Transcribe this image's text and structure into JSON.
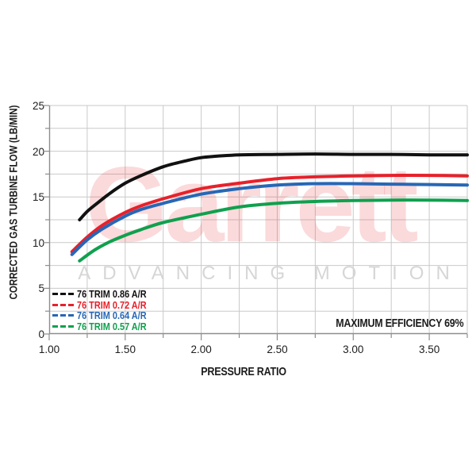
{
  "watermark": {
    "brand": "Garrett",
    "tagline": "ADVANCING MOTION",
    "brand_color": "#e7212b",
    "tagline_color": "#d6d6d6"
  },
  "colors": {
    "gridline": "#c9c9c9",
    "axis": "#8e8e8e",
    "tick_text": "#1c1c1c",
    "background": "#ffffff"
  },
  "chart_data": {
    "type": "line",
    "title": "",
    "xlabel": "PRESSURE RATIO",
    "ylabel": "CORRECTED GAS TURBINE FLOW (LB/MIN)",
    "xlim": [
      1.0,
      3.75
    ],
    "ylim": [
      0,
      25
    ],
    "x_major_ticks": [
      1.0,
      1.5,
      2.0,
      2.5,
      3.0,
      3.5
    ],
    "x_tick_labels": [
      "1.00",
      "1.50",
      "2.00",
      "2.50",
      "3.00",
      "3.50"
    ],
    "x_minor_step": 0.25,
    "y_major_ticks": [
      0,
      5,
      10,
      15,
      20,
      25
    ],
    "y_tick_labels": [
      "0",
      "5",
      "10",
      "15",
      "20",
      "25"
    ],
    "y_minor_step": 2.5,
    "grid": true,
    "legend_position": "bottom-left",
    "annotation": "MAXIMUM EFFICIENCY 69%",
    "series": [
      {
        "name": "76 TRIM 0.86 A/R",
        "color": "#111111",
        "points": [
          [
            1.2,
            12.5
          ],
          [
            1.25,
            13.4
          ],
          [
            1.3,
            14.1
          ],
          [
            1.4,
            15.4
          ],
          [
            1.5,
            16.5
          ],
          [
            1.6,
            17.3
          ],
          [
            1.75,
            18.3
          ],
          [
            1.9,
            18.95
          ],
          [
            2.0,
            19.3
          ],
          [
            2.1,
            19.45
          ],
          [
            2.25,
            19.6
          ],
          [
            2.5,
            19.65
          ],
          [
            2.75,
            19.7
          ],
          [
            3.0,
            19.65
          ],
          [
            3.25,
            19.65
          ],
          [
            3.5,
            19.6
          ],
          [
            3.75,
            19.6
          ]
        ]
      },
      {
        "name": "76 TRIM 0.72 A/R",
        "color": "#e7212b",
        "points": [
          [
            1.15,
            9.0
          ],
          [
            1.25,
            10.6
          ],
          [
            1.35,
            11.9
          ],
          [
            1.5,
            13.3
          ],
          [
            1.6,
            14.0
          ],
          [
            1.75,
            14.8
          ],
          [
            2.0,
            15.9
          ],
          [
            2.25,
            16.5
          ],
          [
            2.5,
            17.0
          ],
          [
            2.75,
            17.2
          ],
          [
            3.0,
            17.3
          ],
          [
            3.25,
            17.35
          ],
          [
            3.5,
            17.35
          ],
          [
            3.75,
            17.3
          ]
        ]
      },
      {
        "name": "76 TRIM 0.64 A/R",
        "color": "#2767b6",
        "points": [
          [
            1.15,
            8.7
          ],
          [
            1.25,
            10.3
          ],
          [
            1.35,
            11.5
          ],
          [
            1.5,
            12.9
          ],
          [
            1.6,
            13.6
          ],
          [
            1.75,
            14.3
          ],
          [
            2.0,
            15.3
          ],
          [
            2.25,
            15.9
          ],
          [
            2.5,
            16.3
          ],
          [
            2.75,
            16.45
          ],
          [
            3.0,
            16.45
          ],
          [
            3.25,
            16.4
          ],
          [
            3.5,
            16.35
          ],
          [
            3.75,
            16.3
          ]
        ]
      },
      {
        "name": "76 TRIM 0.57 A/R",
        "color": "#10a04e",
        "points": [
          [
            1.2,
            8.0
          ],
          [
            1.3,
            9.2
          ],
          [
            1.4,
            10.1
          ],
          [
            1.5,
            10.8
          ],
          [
            1.6,
            11.4
          ],
          [
            1.75,
            12.2
          ],
          [
            2.0,
            13.1
          ],
          [
            2.25,
            13.9
          ],
          [
            2.5,
            14.3
          ],
          [
            2.75,
            14.5
          ],
          [
            3.0,
            14.6
          ],
          [
            3.25,
            14.65
          ],
          [
            3.5,
            14.65
          ],
          [
            3.75,
            14.6
          ]
        ]
      }
    ]
  }
}
